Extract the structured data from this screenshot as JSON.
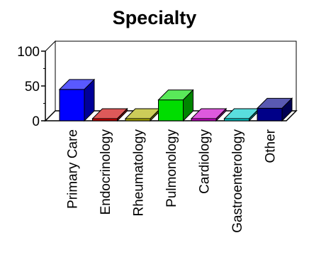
{
  "chart_data": {
    "type": "bar",
    "title": "Specialty",
    "xlabel": "",
    "ylabel": "",
    "ylim": [
      0,
      100
    ],
    "yticks": [
      0,
      50,
      100
    ],
    "categories": [
      "Primary Care",
      "Endocrinology",
      "Rheumatology",
      "Pulmonology",
      "Cardiology",
      "Gastroenterology",
      "Other"
    ],
    "values": [
      45,
      0,
      0,
      30,
      0,
      0,
      18
    ],
    "colors": [
      "#0000ff",
      "#cc0000",
      "#b0b000",
      "#00dd00",
      "#cc00cc",
      "#00cccc",
      "#000088"
    ],
    "three_d": true,
    "grid": false,
    "legend": "none"
  }
}
